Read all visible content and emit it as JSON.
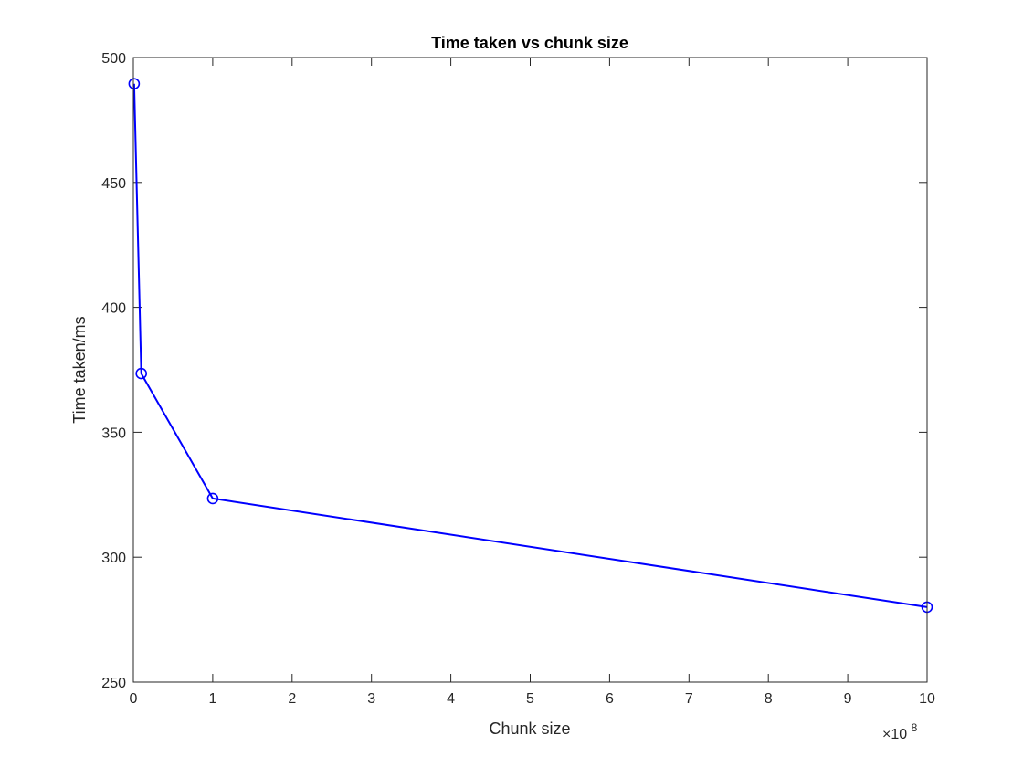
{
  "chart_data": {
    "type": "line",
    "title": "Time taken vs chunk size",
    "xlabel": "Chunk size",
    "ylabel": "Time taken/ms",
    "x_multiplier_label": {
      "base": "×10",
      "exponent": "8"
    },
    "x": [
      1000000,
      10000000,
      100000000,
      1000000000
    ],
    "series": [
      {
        "values": [
          489.5,
          373.5,
          323.5,
          280
        ]
      }
    ],
    "xlim": [
      0,
      1000000000
    ],
    "ylim": [
      250,
      500
    ],
    "xticks": [
      0,
      1,
      2,
      3,
      4,
      5,
      6,
      7,
      8,
      9,
      10
    ],
    "xtick_scale": 100000000,
    "yticks": [
      250,
      300,
      350,
      400,
      450,
      500
    ],
    "grid": false,
    "line_color": "#0000ff",
    "marker": "circle",
    "axis_color": "#262626"
  }
}
